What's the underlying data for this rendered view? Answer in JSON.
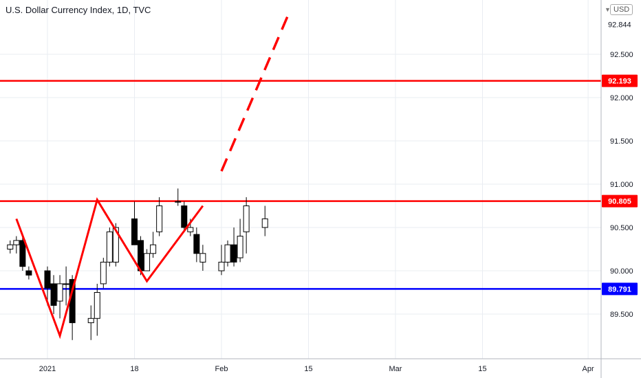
{
  "header": {
    "title": "U.S. Dollar Currency Index, 1D, TVC",
    "currency": "USD"
  },
  "chart_data": {
    "type": "candlestick",
    "title": "U.S. Dollar Currency Index, 1D, TVC",
    "ylim": [
      89.0,
      93.0
    ],
    "y_ticks": [
      89.5,
      90.0,
      90.5,
      91.0,
      91.5,
      92.0,
      92.5
    ],
    "y_tick_labels": [
      "89.500",
      "90.000",
      "90.500",
      "91.000",
      "91.500",
      "92.000",
      "92.500"
    ],
    "x_tick_labels": [
      {
        "label": "2021",
        "date": "2021-01-04"
      },
      {
        "label": "18",
        "date": "2021-01-18"
      },
      {
        "label": "Feb",
        "date": "2021-02-01"
      },
      {
        "label": "15",
        "date": "2021-02-15"
      },
      {
        "label": "Mar",
        "date": "2021-03-01"
      },
      {
        "label": "15",
        "date": "2021-03-15"
      },
      {
        "label": "Apr",
        "date": "2021-04-01"
      }
    ],
    "last_price": {
      "label": "92.844",
      "value": 92.844
    },
    "grid": true,
    "colors": {
      "up_fill": "#ffffff",
      "down_fill": "#000000",
      "candle_outline": "#000000",
      "horizontal_red": "#ff0000",
      "horizontal_blue": "#0000ff",
      "zigzag": "#ff0000",
      "grid": "#e9ecf2",
      "axis_text": "#131722"
    },
    "horizontal_levels": [
      {
        "value": 92.193,
        "label": "92.193",
        "color": "#ff0000"
      },
      {
        "value": 90.805,
        "label": "90.805",
        "color": "#ff0000"
      },
      {
        "value": 89.791,
        "label": "89.791",
        "color": "#0000ff"
      }
    ],
    "zigzag": [
      {
        "date": "2020-12-30",
        "value": 90.6
      },
      {
        "date": "2021-01-06",
        "value": 89.25
      },
      {
        "date": "2021-01-12",
        "value": 90.82
      },
      {
        "date": "2021-01-20",
        "value": 89.88
      },
      {
        "date": "2021-01-29",
        "value": 90.75
      }
    ],
    "projection": [
      {
        "date": "2021-02-01",
        "value": 91.15
      },
      {
        "date": "2021-02-12",
        "value": 93.0
      }
    ],
    "candles": [
      {
        "date": "2020-12-29",
        "o": 90.25,
        "h": 90.35,
        "l": 90.2,
        "c": 90.3
      },
      {
        "date": "2020-12-30",
        "o": 90.3,
        "h": 90.4,
        "l": 90.2,
        "c": 90.35
      },
      {
        "date": "2020-12-31",
        "o": 90.35,
        "h": 90.4,
        "l": 90.0,
        "c": 90.05
      },
      {
        "date": "2021-01-01",
        "o": 90.0,
        "h": 90.05,
        "l": 89.9,
        "c": 89.95
      },
      {
        "date": "2021-01-04",
        "o": 90.0,
        "h": 90.05,
        "l": 89.6,
        "c": 89.8
      },
      {
        "date": "2021-01-05",
        "o": 89.85,
        "h": 89.95,
        "l": 89.5,
        "c": 89.6
      },
      {
        "date": "2021-01-06",
        "o": 89.65,
        "h": 89.95,
        "l": 89.45,
        "c": 89.85
      },
      {
        "date": "2021-01-07",
        "o": 89.85,
        "h": 90.05,
        "l": 89.6,
        "c": 89.85
      },
      {
        "date": "2021-01-08",
        "o": 89.9,
        "h": 89.95,
        "l": 89.2,
        "c": 89.4
      },
      {
        "date": "2021-01-11",
        "o": 89.4,
        "h": 89.6,
        "l": 89.2,
        "c": 89.45
      },
      {
        "date": "2021-01-12",
        "o": 89.45,
        "h": 89.85,
        "l": 89.25,
        "c": 89.75
      },
      {
        "date": "2021-01-13",
        "o": 89.85,
        "h": 90.15,
        "l": 89.8,
        "c": 90.1
      },
      {
        "date": "2021-01-14",
        "o": 90.1,
        "h": 90.5,
        "l": 90.05,
        "c": 90.45
      },
      {
        "date": "2021-01-15",
        "o": 90.1,
        "h": 90.55,
        "l": 90.05,
        "c": 90.5
      },
      {
        "date": "2021-01-18",
        "o": 90.6,
        "h": 90.8,
        "l": 90.3,
        "c": 90.3
      },
      {
        "date": "2021-01-19",
        "o": 90.35,
        "h": 90.4,
        "l": 89.95,
        "c": 90.0
      },
      {
        "date": "2021-01-20",
        "o": 90.0,
        "h": 90.25,
        "l": 90.0,
        "c": 90.2
      },
      {
        "date": "2021-01-21",
        "o": 90.2,
        "h": 90.45,
        "l": 90.15,
        "c": 90.3
      },
      {
        "date": "2021-01-22",
        "o": 90.45,
        "h": 90.85,
        "l": 90.4,
        "c": 90.75
      },
      {
        "date": "2021-01-25",
        "o": 90.8,
        "h": 90.95,
        "l": 90.75,
        "c": 90.8
      },
      {
        "date": "2021-01-26",
        "o": 90.75,
        "h": 90.8,
        "l": 90.45,
        "c": 90.5
      },
      {
        "date": "2021-01-27",
        "o": 90.45,
        "h": 90.6,
        "l": 90.4,
        "c": 90.5
      },
      {
        "date": "2021-01-28",
        "o": 90.42,
        "h": 90.5,
        "l": 90.1,
        "c": 90.2
      },
      {
        "date": "2021-01-29",
        "o": 90.1,
        "h": 90.3,
        "l": 90.0,
        "c": 90.2
      },
      {
        "date": "2021-02-01",
        "o": 90.0,
        "h": 90.3,
        "l": 89.95,
        "c": 90.1
      },
      {
        "date": "2021-02-02",
        "o": 90.1,
        "h": 90.35,
        "l": 90.05,
        "c": 90.3
      },
      {
        "date": "2021-02-03",
        "o": 90.3,
        "h": 90.5,
        "l": 90.05,
        "c": 90.1
      },
      {
        "date": "2021-02-04",
        "o": 90.15,
        "h": 90.6,
        "l": 90.1,
        "c": 90.4
      },
      {
        "date": "2021-02-05",
        "o": 90.45,
        "h": 90.85,
        "l": 90.2,
        "c": 90.75
      },
      {
        "date": "2021-02-08",
        "o": 90.5,
        "h": 90.75,
        "l": 90.4,
        "c": 90.6
      }
    ]
  }
}
